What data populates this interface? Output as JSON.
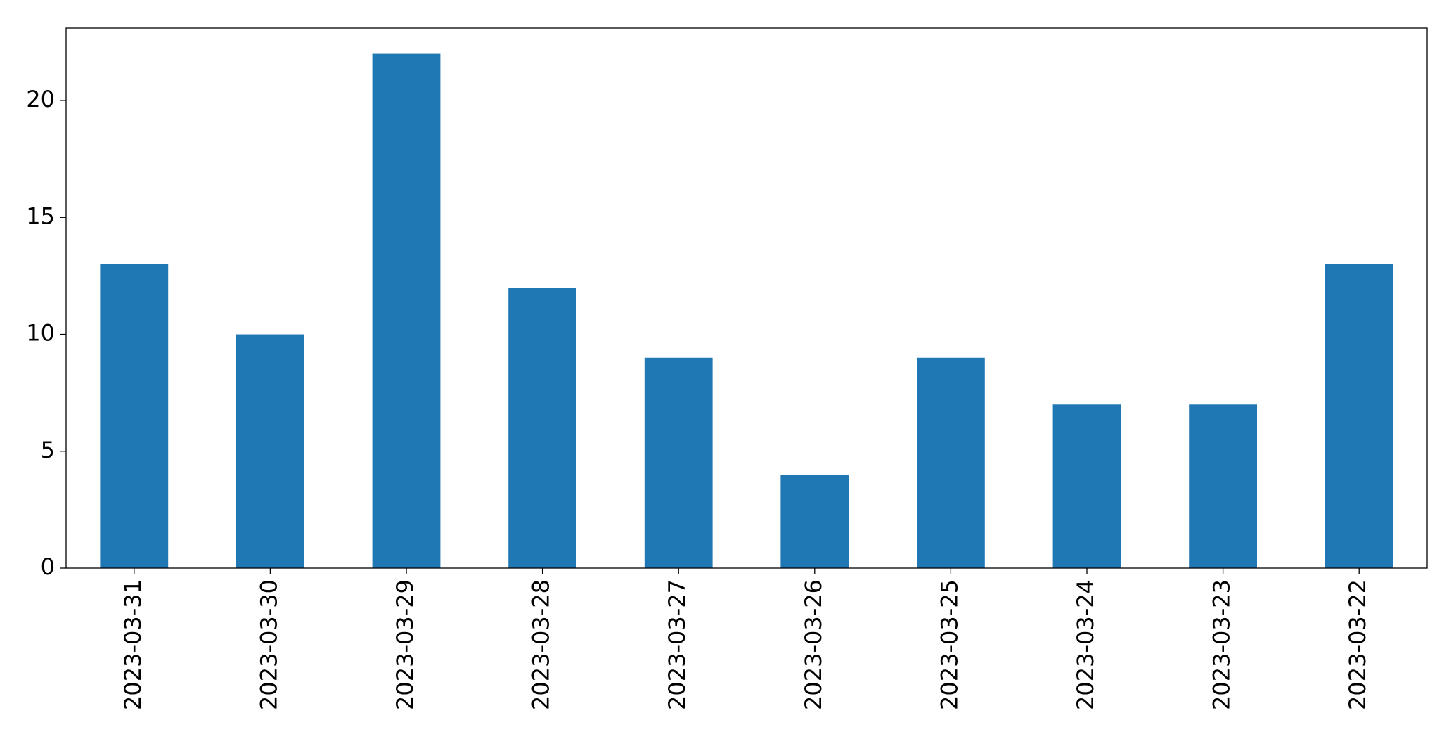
{
  "chart_data": {
    "type": "bar",
    "categories": [
      "2023-03-31",
      "2023-03-30",
      "2023-03-29",
      "2023-03-28",
      "2023-03-27",
      "2023-03-26",
      "2023-03-25",
      "2023-03-24",
      "2023-03-23",
      "2023-03-22"
    ],
    "values": [
      13,
      10,
      22,
      12,
      9,
      4,
      9,
      7,
      7,
      13
    ],
    "color": "#1f77b4",
    "ylim": [
      0,
      23.1
    ],
    "yticks": [
      0,
      5,
      10,
      15,
      20
    ],
    "grid": false
  }
}
